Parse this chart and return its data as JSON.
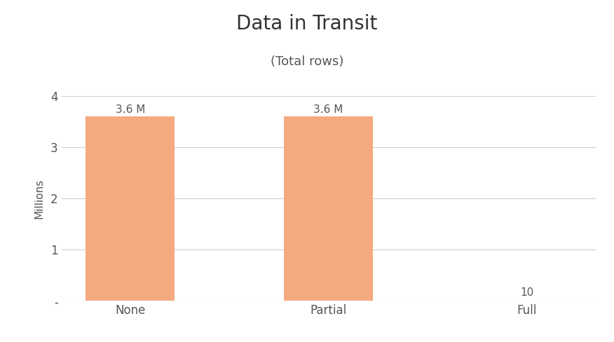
{
  "title": "Data in Transit",
  "subtitle": "(Total rows)",
  "categories": [
    "None",
    "Partial",
    "Full"
  ],
  "values": [
    3600000,
    3600000,
    10
  ],
  "bar_color": "#F4A97F",
  "ylabel": "Millions",
  "ylim": [
    0,
    4000000
  ],
  "yticks": [
    0,
    1000000,
    2000000,
    3000000,
    4000000
  ],
  "ytick_labels": [
    "-",
    "1",
    "2",
    "3",
    "4"
  ],
  "bar_labels": [
    "3.6 M",
    "3.6 M",
    "10"
  ],
  "background_color": "#ffffff",
  "plot_bg_color": "#ffffff",
  "title_fontsize": 20,
  "subtitle_fontsize": 13,
  "ylabel_fontsize": 11,
  "tick_fontsize": 12,
  "bar_label_fontsize": 11,
  "bar_width": 0.45,
  "grid_color": "#d0d0d0",
  "text_color": "#555555"
}
